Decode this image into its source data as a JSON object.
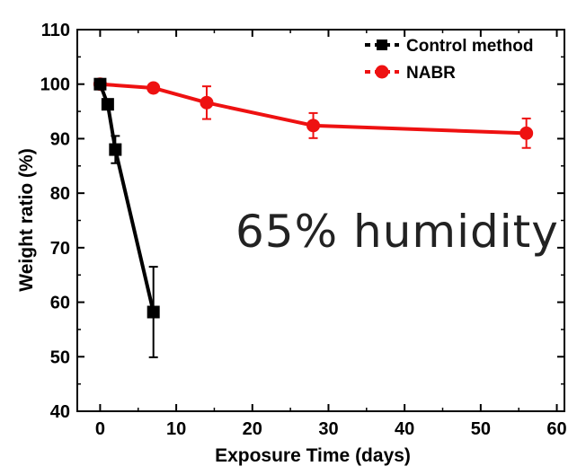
{
  "chart_data": {
    "type": "line",
    "xlabel": "Exposure Time (days)",
    "ylabel": "Weight ratio (%)",
    "xlim": [
      -3,
      61
    ],
    "ylim": [
      40,
      110
    ],
    "xticks": [
      0,
      10,
      20,
      30,
      40,
      50,
      60
    ],
    "yticks": [
      40,
      50,
      60,
      70,
      80,
      90,
      100,
      110
    ],
    "annotation": "65% humidity",
    "legend_position": "top-right",
    "grid": false,
    "series": [
      {
        "name": "Control method",
        "color": "#000000",
        "marker": "square",
        "x": [
          0,
          1,
          2,
          7
        ],
        "y": [
          100,
          96.3,
          88,
          58.2
        ],
        "err": [
          0.5,
          0.8,
          2.5,
          8.3
        ]
      },
      {
        "name": "NABR",
        "color": "#ee1111",
        "marker": "circle",
        "x": [
          0,
          7,
          14,
          28,
          56
        ],
        "y": [
          100,
          99.3,
          96.6,
          92.4,
          91
        ],
        "err": [
          0.5,
          0.5,
          3,
          2.3,
          2.7
        ]
      }
    ]
  }
}
